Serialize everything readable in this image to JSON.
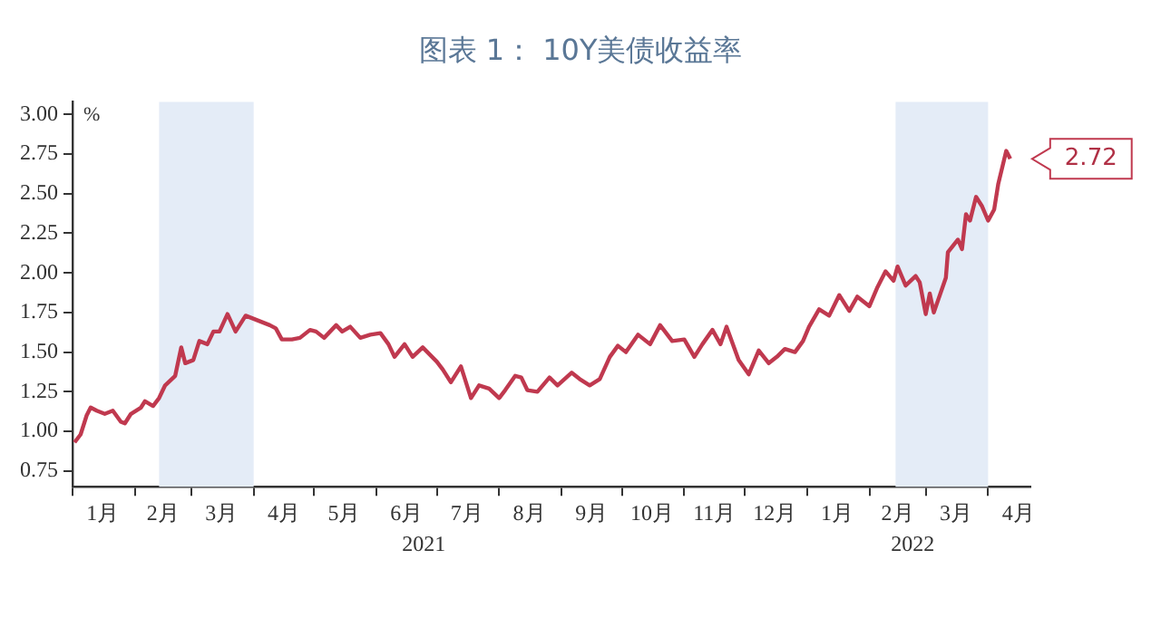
{
  "chart_data": {
    "type": "line",
    "title": "图表 1： 10Y美债收益率",
    "ylabel": "%",
    "x": [
      "2021-01-02",
      "2021-01-05",
      "2021-01-08",
      "2021-01-10",
      "2021-01-13",
      "2021-01-17",
      "2021-01-21",
      "2021-01-25",
      "2021-01-27",
      "2021-01-30",
      "2021-02-04",
      "2021-02-06",
      "2021-02-10",
      "2021-02-13",
      "2021-02-16",
      "2021-02-21",
      "2021-02-24",
      "2021-02-26",
      "2021-03-02",
      "2021-03-05",
      "2021-03-09",
      "2021-03-12",
      "2021-03-15",
      "2021-03-19",
      "2021-03-23",
      "2021-03-28",
      "2021-04-01",
      "2021-04-05",
      "2021-04-09",
      "2021-04-12",
      "2021-04-15",
      "2021-04-20",
      "2021-04-24",
      "2021-04-29",
      "2021-05-02",
      "2021-05-06",
      "2021-05-12",
      "2021-05-15",
      "2021-05-19",
      "2021-05-24",
      "2021-05-29",
      "2021-06-03",
      "2021-06-07",
      "2021-06-10",
      "2021-06-15",
      "2021-06-19",
      "2021-06-24",
      "2021-07-01",
      "2021-07-04",
      "2021-07-08",
      "2021-07-13",
      "2021-07-18",
      "2021-07-22",
      "2021-07-27",
      "2021-08-01",
      "2021-08-04",
      "2021-08-09",
      "2021-08-12",
      "2021-08-15",
      "2021-08-20",
      "2021-08-26",
      "2021-08-30",
      "2021-09-06",
      "2021-09-10",
      "2021-09-15",
      "2021-09-20",
      "2021-09-25",
      "2021-09-29",
      "2021-10-03",
      "2021-10-09",
      "2021-10-15",
      "2021-10-20",
      "2021-10-26",
      "2021-11-01",
      "2021-11-06",
      "2021-11-10",
      "2021-11-15",
      "2021-11-19",
      "2021-11-22",
      "2021-11-28",
      "2021-12-03",
      "2021-12-08",
      "2021-12-13",
      "2021-12-17",
      "2021-12-21",
      "2021-12-26",
      "2021-12-30",
      "2022-01-02",
      "2022-01-07",
      "2022-01-12",
      "2022-01-17",
      "2022-01-22",
      "2022-01-26",
      "2022-02-01",
      "2022-02-05",
      "2022-02-09",
      "2022-02-13",
      "2022-02-15",
      "2022-02-19",
      "2022-02-24",
      "2022-02-26",
      "2022-03-01",
      "2022-03-03",
      "2022-03-05",
      "2022-03-11",
      "2022-03-12",
      "2022-03-17",
      "2022-03-19",
      "2022-03-21",
      "2022-03-23",
      "2022-03-26",
      "2022-03-29",
      "2022-04-01",
      "2022-04-04",
      "2022-04-06",
      "2022-04-10",
      "2022-04-12"
    ],
    "series": [
      {
        "color": "#c0394f",
        "values": [
          0.93,
          0.98,
          1.1,
          1.15,
          1.13,
          1.11,
          1.13,
          1.06,
          1.05,
          1.11,
          1.15,
          1.19,
          1.16,
          1.21,
          1.29,
          1.35,
          1.53,
          1.43,
          1.45,
          1.57,
          1.55,
          1.63,
          1.63,
          1.74,
          1.63,
          1.73,
          1.71,
          1.69,
          1.67,
          1.65,
          1.58,
          1.58,
          1.59,
          1.64,
          1.63,
          1.59,
          1.67,
          1.63,
          1.66,
          1.59,
          1.61,
          1.62,
          1.55,
          1.47,
          1.55,
          1.47,
          1.53,
          1.44,
          1.39,
          1.31,
          1.41,
          1.21,
          1.29,
          1.27,
          1.21,
          1.26,
          1.35,
          1.34,
          1.26,
          1.25,
          1.34,
          1.29,
          1.37,
          1.33,
          1.29,
          1.33,
          1.47,
          1.54,
          1.5,
          1.61,
          1.55,
          1.67,
          1.57,
          1.58,
          1.47,
          1.55,
          1.64,
          1.55,
          1.66,
          1.45,
          1.36,
          1.51,
          1.43,
          1.47,
          1.52,
          1.5,
          1.57,
          1.66,
          1.77,
          1.73,
          1.86,
          1.76,
          1.85,
          1.79,
          1.91,
          2.01,
          1.95,
          2.04,
          1.92,
          1.98,
          1.94,
          1.74,
          1.87,
          1.75,
          1.97,
          2.13,
          2.21,
          2.15,
          2.37,
          2.33,
          2.48,
          2.42,
          2.33,
          2.4,
          2.56,
          2.77,
          2.72
        ]
      }
    ],
    "xlim": [
      "2021-01-01",
      "2022-04-22"
    ],
    "xticks": [
      {
        "value": "2021-01-01",
        "label": null
      },
      {
        "value": "2021-01-16",
        "label": "1月"
      },
      {
        "value": "2021-02-01",
        "label": null
      },
      {
        "value": "2021-02-15",
        "label": "2月"
      },
      {
        "value": "2021-03-01",
        "label": null
      },
      {
        "value": "2021-03-16",
        "label": "3月"
      },
      {
        "value": "2021-04-01",
        "label": null
      },
      {
        "value": "2021-04-16",
        "label": "4月"
      },
      {
        "value": "2021-05-01",
        "label": null
      },
      {
        "value": "2021-05-16",
        "label": "5月"
      },
      {
        "value": "2021-06-01",
        "label": null
      },
      {
        "value": "2021-06-16",
        "label": "6月"
      },
      {
        "value": "2021-07-01",
        "label": null
      },
      {
        "value": "2021-07-16",
        "label": "7月"
      },
      {
        "value": "2021-08-01",
        "label": null
      },
      {
        "value": "2021-08-16",
        "label": "8月"
      },
      {
        "value": "2021-09-01",
        "label": null
      },
      {
        "value": "2021-09-16",
        "label": "9月"
      },
      {
        "value": "2021-10-01",
        "label": null
      },
      {
        "value": "2021-10-16",
        "label": "10月"
      },
      {
        "value": "2021-11-01",
        "label": null
      },
      {
        "value": "2021-11-16",
        "label": "11月"
      },
      {
        "value": "2021-12-01",
        "label": null
      },
      {
        "value": "2021-12-16",
        "label": "12月"
      },
      {
        "value": "2022-01-01",
        "label": null
      },
      {
        "value": "2022-01-16",
        "label": "1月"
      },
      {
        "value": "2022-02-01",
        "label": null
      },
      {
        "value": "2022-02-15",
        "label": "2月"
      },
      {
        "value": "2022-03-01",
        "label": null
      },
      {
        "value": "2022-03-16",
        "label": "3月"
      },
      {
        "value": "2022-04-01",
        "label": null
      },
      {
        "value": "2022-04-16",
        "label": "4月"
      }
    ],
    "ylim": [
      0.65,
      3.08
    ],
    "yticks": [
      {
        "value": 0.75,
        "label": "0.75"
      },
      {
        "value": 1,
        "label": "1.00"
      },
      {
        "value": 1.25,
        "label": "1.25"
      },
      {
        "value": 1.5,
        "label": "1.50"
      },
      {
        "value": 1.75,
        "label": "1.75"
      },
      {
        "value": 2,
        "label": "2.00"
      },
      {
        "value": 2.25,
        "label": "2.25"
      },
      {
        "value": 2.5,
        "label": "2.50"
      },
      {
        "value": 2.75,
        "label": "2.75"
      },
      {
        "value": 3,
        "label": "3.00"
      }
    ],
    "bands": [
      {
        "axis": "x",
        "from": "2021-02-13",
        "to": "2021-04-01",
        "color": "#e4ecf7"
      },
      {
        "axis": "x",
        "from": "2022-02-14",
        "to": "2022-04-01",
        "color": "#e4ecf7"
      }
    ],
    "annotations": [
      "2021",
      "2022",
      {
        "text": "2.72",
        "x": "2022-04-12",
        "y": 2.72
      }
    ],
    "grid": false,
    "legend": false,
    "marker": "none",
    "line_style": "solid"
  }
}
